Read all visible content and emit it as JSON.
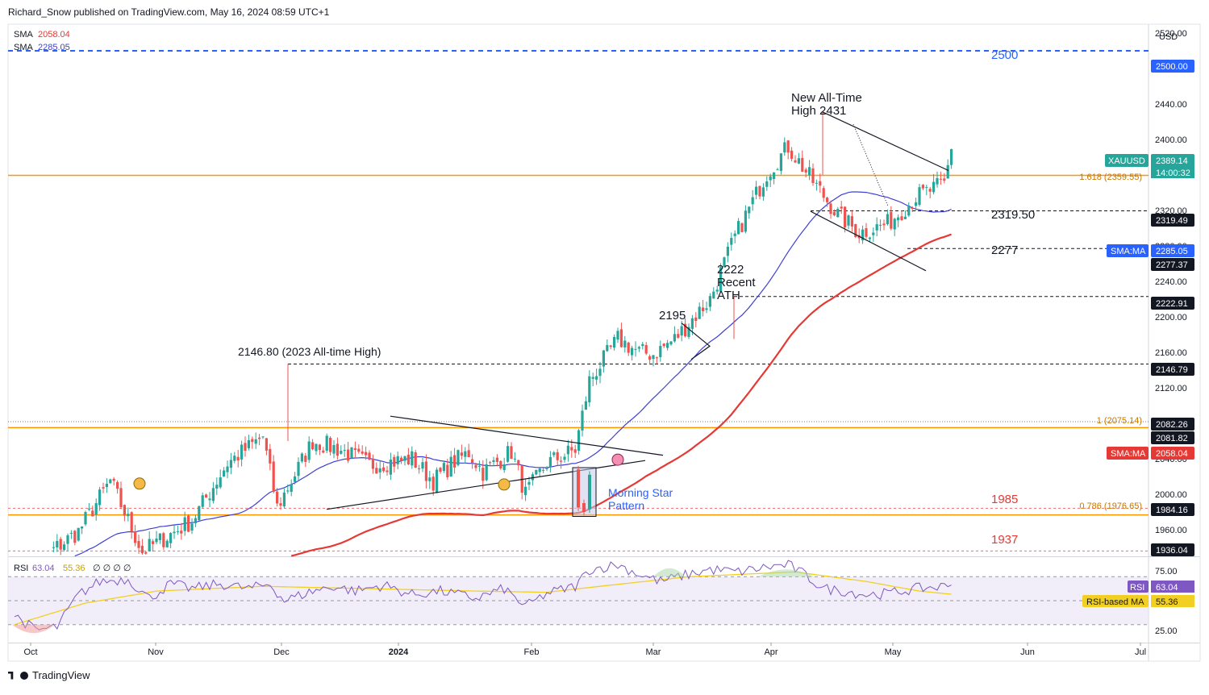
{
  "header": {
    "published": "Richard_Snow published on TradingView.com, May 16, 2024 08:59 UTC+1"
  },
  "legend": {
    "sma1_label": "SMA",
    "sma1_value": "2058.04",
    "sma2_label": "SMA",
    "sma2_value": "2285.05",
    "rsi_label": "RSI",
    "rsi_value": "63.04",
    "rsi_ma_value": "55.36",
    "rsi_extra": "∅ ∅ ∅ ∅"
  },
  "footer": {
    "brand": "TradingView"
  },
  "colors": {
    "up": "#26a69a",
    "down": "#ef5350",
    "sma_slow": "#e53935",
    "sma_fast": "#3f3fd6",
    "fib": "#ff9800",
    "blue_dashed": "#2962ff",
    "rsi": "#7e57c2",
    "rsi_ma": "#f2d023"
  },
  "chart_data": [
    {
      "type": "candlestick",
      "title": "XAUUSD Daily",
      "symbol": "XAUUSD",
      "currency": "USD",
      "x_axis_labels": [
        "Oct",
        "Nov",
        "Dec",
        "2024",
        "Feb",
        "Mar",
        "Apr",
        "May",
        "Jun",
        "Jul"
      ],
      "y_axis_ticks": [
        1960,
        2000,
        2040,
        2080,
        2120,
        2160,
        2200,
        2240,
        2280,
        2320,
        2360,
        2400,
        2440,
        2480,
        2520
      ],
      "ylim": [
        1930,
        2530
      ],
      "anchors": [
        [
          0,
          1905
        ],
        [
          18,
          1958
        ],
        [
          27,
          2015
        ],
        [
          36,
          1935
        ],
        [
          50,
          1970
        ],
        [
          60,
          2035
        ],
        [
          70,
          2065
        ],
        [
          74,
          1985
        ],
        [
          84,
          2060
        ],
        [
          92,
          2050
        ],
        [
          100,
          2033
        ],
        [
          112,
          2040
        ],
        [
          118,
          2015
        ],
        [
          124,
          2037
        ],
        [
          128,
          2047
        ],
        [
          132,
          2025
        ],
        [
          140,
          2048
        ],
        [
          144,
          2000
        ],
        [
          150,
          2035
        ],
        [
          158,
          2050
        ],
        [
          162,
          2128
        ],
        [
          170,
          2175
        ],
        [
          176,
          2160
        ],
        [
          180,
          2158
        ],
        [
          186,
          2175
        ],
        [
          196,
          2220
        ],
        [
          203,
          2290
        ],
        [
          212,
          2362
        ],
        [
          218,
          2392
        ],
        [
          224,
          2358
        ],
        [
          232,
          2315
        ],
        [
          238,
          2295
        ],
        [
          246,
          2305
        ],
        [
          254,
          2335
        ],
        [
          262,
          2350
        ],
        [
          264,
          2389
        ]
      ],
      "current_price": 2389.14,
      "countdown": "14:00:32",
      "price_axis_labels": [
        {
          "value": 2500,
          "text": "2500.00",
          "bg": "#2962ff"
        },
        {
          "value": 2389.14,
          "text": "2389.14",
          "bg": "#26a69a"
        },
        {
          "value": 2319.49,
          "text": "2319.49",
          "bg": "#131722"
        },
        {
          "value": 2285.05,
          "text": "2285.05",
          "bg": "#2962ff"
        },
        {
          "value": 2277.37,
          "text": "2277.37",
          "bg": "#131722"
        },
        {
          "value": 2222.91,
          "text": "2222.91",
          "bg": "#131722"
        },
        {
          "value": 2146.79,
          "text": "2146.79",
          "bg": "#131722"
        },
        {
          "value": 2082.26,
          "text": "2082.26",
          "bg": "#131722"
        },
        {
          "value": 2081.82,
          "text": "2081.82",
          "bg": "#131722"
        },
        {
          "value": 2058.04,
          "text": "2058.04",
          "bg": "#e53935"
        },
        {
          "value": 1984.16,
          "text": "1984.16",
          "bg": "#131722"
        },
        {
          "value": 1936.04,
          "text": "1936.04",
          "bg": "#131722"
        }
      ],
      "symbol_tag": "XAUUSD",
      "sma_tag_1": "SMA:MA",
      "sma_tag_2": "SMA:MA",
      "levels": [
        {
          "value": 2500,
          "style": "blue-dashed",
          "label": "2500"
        },
        {
          "value": 2359.55,
          "style": "orange",
          "label": "1.618 (2359.55)"
        },
        {
          "value": 2319.5,
          "style": "black-dashed",
          "label": "2319.50"
        },
        {
          "value": 2277,
          "style": "black-dashed",
          "label": "2277"
        },
        {
          "value": 2222.91,
          "style": "black-dashed",
          "label": ""
        },
        {
          "value": 2146.79,
          "style": "black-dashed",
          "label": ""
        },
        {
          "value": 2081.82,
          "style": "black-dotted",
          "label": ""
        },
        {
          "value": 2075.14,
          "style": "orange",
          "label": "1 (2075.14)"
        },
        {
          "value": 1984.16,
          "style": "red-dashed",
          "label": "1985"
        },
        {
          "value": 1976.65,
          "style": "orange",
          "label": "0.786 (1976.65)"
        },
        {
          "value": 1936.04,
          "style": "red-dashed",
          "label": "1937"
        }
      ],
      "annotations": {
        "ath_2023": "2146.80 (2023 All-time High)",
        "label_2195": "2195",
        "recent_ath_1": "2222",
        "recent_ath_2": "Recent",
        "recent_ath_3": "ATH",
        "new_ath_1": "New All-Time",
        "new_ath_2": "High 2431",
        "morning_star_1": "Morning Star",
        "morning_star_2": "Pattern",
        "level_2500": "2500",
        "level_2319": "2319.50",
        "level_2277": "2277",
        "level_1985": "1985",
        "level_1937": "1937",
        "fib_1618": "1.618 (2359.55)",
        "fib_1": "1 (2075.14)",
        "fib_0786": "0.786 (1976.65)"
      }
    },
    {
      "type": "line",
      "title": "RSI",
      "y_axis_ticks": [
        25,
        50,
        75
      ],
      "ylim": [
        15,
        85
      ],
      "overbought": 70,
      "oversold": 30,
      "midline": 50,
      "rsi_anchors": [
        [
          0,
          38
        ],
        [
          6,
          25
        ],
        [
          12,
          28
        ],
        [
          18,
          55
        ],
        [
          24,
          66
        ],
        [
          32,
          68
        ],
        [
          38,
          52
        ],
        [
          44,
          64
        ],
        [
          50,
          60
        ],
        [
          58,
          64
        ],
        [
          66,
          60
        ],
        [
          72,
          64
        ],
        [
          76,
          50
        ],
        [
          84,
          58
        ],
        [
          90,
          62
        ],
        [
          96,
          58
        ],
        [
          104,
          63
        ],
        [
          112,
          55
        ],
        [
          120,
          58
        ],
        [
          130,
          52
        ],
        [
          138,
          60
        ],
        [
          144,
          45
        ],
        [
          150,
          56
        ],
        [
          158,
          62
        ],
        [
          162,
          76
        ],
        [
          170,
          80
        ],
        [
          176,
          72
        ],
        [
          182,
          66
        ],
        [
          190,
          72
        ],
        [
          196,
          76
        ],
        [
          204,
          74
        ],
        [
          212,
          78
        ],
        [
          218,
          80
        ],
        [
          222,
          73
        ],
        [
          228,
          60
        ],
        [
          234,
          58
        ],
        [
          240,
          55
        ],
        [
          246,
          56
        ],
        [
          254,
          60
        ],
        [
          262,
          62
        ],
        [
          264,
          63.04
        ]
      ],
      "rsi_ma_anchors": [
        [
          0,
          30
        ],
        [
          20,
          48
        ],
        [
          40,
          58
        ],
        [
          70,
          62
        ],
        [
          100,
          60
        ],
        [
          130,
          58
        ],
        [
          150,
          57
        ],
        [
          165,
          62
        ],
        [
          190,
          70
        ],
        [
          220,
          74
        ],
        [
          240,
          66
        ],
        [
          255,
          58
        ],
        [
          264,
          55.36
        ]
      ],
      "current": 63.04,
      "ma_current": 55.36,
      "tag_rsi": "RSI",
      "tag_rsi_ma": "RSI-based MA",
      "tick_labels": [
        "75.00",
        "50.00",
        "25.00"
      ]
    }
  ]
}
